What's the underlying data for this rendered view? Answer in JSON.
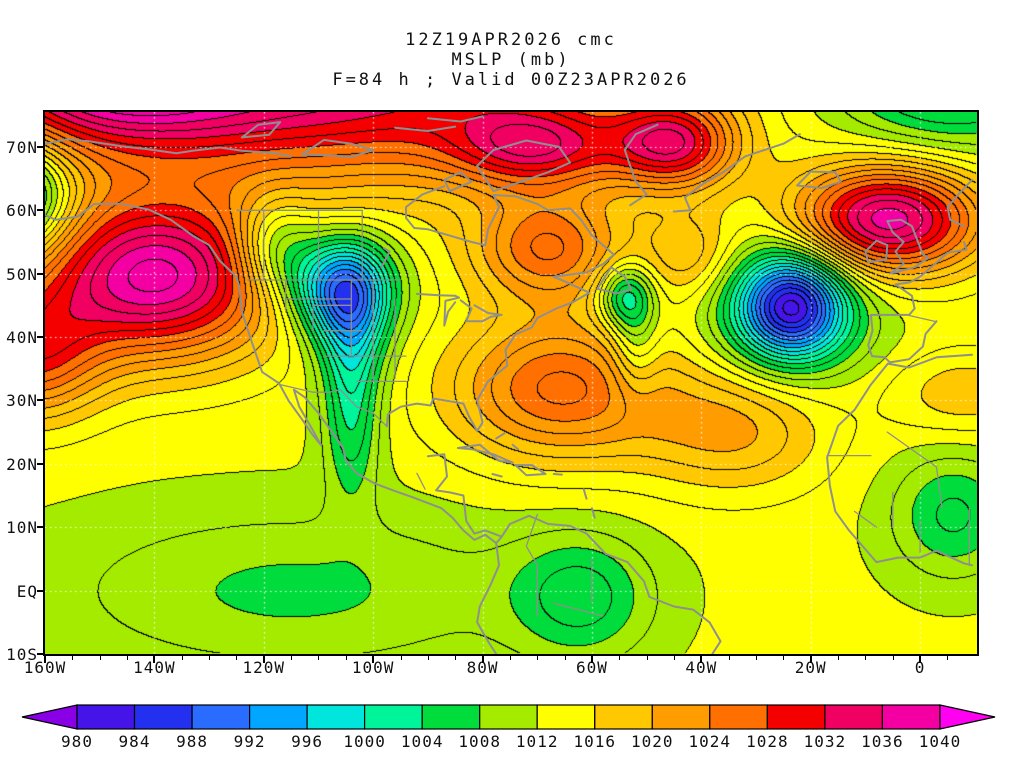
{
  "title": {
    "line1": "12Z19APR2026 cmc",
    "line2": "MSLP (mb)",
    "line3": "F=84 h ; Valid 00Z23APR2026"
  },
  "axes": {
    "lat_ticks": [
      {
        "label": "70N",
        "value": 70
      },
      {
        "label": "60N",
        "value": 60
      },
      {
        "label": "50N",
        "value": 50
      },
      {
        "label": "40N",
        "value": 40
      },
      {
        "label": "30N",
        "value": 30
      },
      {
        "label": "20N",
        "value": 20
      },
      {
        "label": "10N",
        "value": 10
      },
      {
        "label": "EQ",
        "value": 0
      },
      {
        "label": "10S",
        "value": -10
      }
    ],
    "lon_ticks": [
      {
        "label": "160W",
        "value": -160
      },
      {
        "label": "140W",
        "value": -140
      },
      {
        "label": "120W",
        "value": -120
      },
      {
        "label": "100W",
        "value": -100
      },
      {
        "label": "80W",
        "value": -80
      },
      {
        "label": "60W",
        "value": -60
      },
      {
        "label": "40W",
        "value": -40
      },
      {
        "label": "20W",
        "value": -20
      },
      {
        "label": "0",
        "value": 0
      }
    ]
  },
  "colorbar": {
    "labels": [
      "980",
      "984",
      "988",
      "992",
      "996",
      "1000",
      "1004",
      "1008",
      "1012",
      "1016",
      "1020",
      "1024",
      "1028",
      "1032",
      "1036",
      "1040"
    ],
    "colors": [
      "#8a00e6",
      "#4414e8",
      "#2330f0",
      "#2a6cff",
      "#00a6ff",
      "#00e6dc",
      "#00f59b",
      "#00dc3c",
      "#a4eb00",
      "#ffff00",
      "#ffc800",
      "#ff9c00",
      "#ff7000",
      "#f40000",
      "#f00060",
      "#f400a2",
      "#ff00f0"
    ],
    "outline_color": "#000000"
  },
  "chart_data": {
    "type": "heatmap",
    "title": "12Z19APR2026 cmc MSLP (mb) F=84 h ; Valid 00Z23APR2026",
    "model": "cmc",
    "init_time": "12Z19APR2026",
    "forecast_hour": 84,
    "valid_time": "00Z23APR2026",
    "field": "MSLP",
    "units": "mb",
    "lon_range_deg": [
      -160,
      10.4
    ],
    "lat_range_deg": [
      -10,
      75.5
    ],
    "fill_levels_mb": [
      980,
      984,
      988,
      992,
      996,
      1000,
      1004,
      1008,
      1012,
      1016,
      1020,
      1024,
      1028,
      1032,
      1036,
      1040
    ],
    "contour_interval_mb": 2,
    "fill_interval_mb": 4,
    "background_pressure_mb": 1012.5,
    "grid_lines": {
      "lat_deg": [
        70,
        60,
        50,
        40,
        30,
        20,
        10,
        0,
        -10
      ],
      "lon_deg": [
        -140,
        -120,
        -100,
        -80,
        -60,
        -40,
        -20,
        0
      ],
      "style": "dotted-white"
    },
    "pressure_centers": [
      {
        "name": "northeast-pacific-high",
        "type": "high",
        "lon": -140,
        "lat": 49.5,
        "amplitude_mb": 26,
        "rx_deg": 16,
        "ry_deg": 9
      },
      {
        "name": "west-pacific-ridge",
        "type": "high",
        "lon": -163,
        "lat": 37,
        "amplitude_mb": 14,
        "rx_deg": 9,
        "ry_deg": 7
      },
      {
        "name": "arctic-ridge",
        "type": "high",
        "lon": -110,
        "lat": 80,
        "amplitude_mb": 22,
        "rx_deg": 38,
        "ry_deg": 11
      },
      {
        "name": "arctic-high-west-core",
        "type": "high",
        "lon": -70,
        "lat": 70,
        "amplitude_mb": 14,
        "rx_deg": 11,
        "ry_deg": 4.5
      },
      {
        "name": "arctic-high-east-core",
        "type": "high",
        "lon": -45,
        "lat": 70.5,
        "amplitude_mb": 18,
        "rx_deg": 8,
        "ry_deg": 5
      },
      {
        "name": "alaska-arctic-ridge",
        "type": "high",
        "lon": -150,
        "lat": 80,
        "amplitude_mb": 16,
        "rx_deg": 18,
        "ry_deg": 7
      },
      {
        "name": "northeast-atlantic-high",
        "type": "high",
        "lon": -6,
        "lat": 58.5,
        "amplitude_mb": 25,
        "rx_deg": 12,
        "ry_deg": 6
      },
      {
        "name": "west-atlantic-high",
        "type": "high",
        "lon": -66,
        "lat": 32,
        "amplitude_mb": 14,
        "rx_deg": 14,
        "ry_deg": 8
      },
      {
        "name": "east-canada-ridge",
        "type": "high",
        "lon": -68,
        "lat": 54,
        "amplitude_mb": 13,
        "rx_deg": 10,
        "ry_deg": 6
      },
      {
        "name": "subtropical-atlantic-high",
        "type": "high",
        "lon": -34,
        "lat": 25.5,
        "amplitude_mb": 8,
        "rx_deg": 12,
        "ry_deg": 7
      },
      {
        "name": "sahara-ridge",
        "type": "high",
        "lon": 8,
        "lat": 31,
        "amplitude_mb": 5,
        "rx_deg": 10,
        "ry_deg": 5
      },
      {
        "name": "mid-atlantic-ridge",
        "type": "high",
        "lon": -42,
        "lat": 53,
        "amplitude_mb": 7,
        "rx_deg": 6,
        "ry_deg": 5
      },
      {
        "name": "northern-plains-low",
        "type": "low",
        "lon": -106,
        "lat": 48,
        "amplitude_mb": -22,
        "rx_deg": 6.5,
        "ry_deg": 5.5
      },
      {
        "name": "plains-trough",
        "type": "low",
        "lon": -104,
        "lat": 41,
        "amplitude_mb": -10,
        "rx_deg": 4.5,
        "ry_deg": 7
      },
      {
        "name": "bc-trough",
        "type": "low",
        "lon": -118,
        "lat": 54,
        "amplitude_mb": -10,
        "rx_deg": 5,
        "ry_deg": 5.5
      },
      {
        "name": "atlantic-low",
        "type": "low",
        "lon": -23.5,
        "lat": 44.8,
        "amplitude_mb": -24,
        "rx_deg": 6.5,
        "ry_deg": 5.5
      },
      {
        "name": "atlantic-low-halo",
        "type": "low",
        "lon": -24,
        "lat": 45,
        "amplitude_mb": -8,
        "rx_deg": 11,
        "ry_deg": 8
      },
      {
        "name": "newfoundland-low",
        "type": "low",
        "lon": -54,
        "lat": 46.5,
        "amplitude_mb": -11,
        "rx_deg": 3.5,
        "ry_deg": 3.5
      },
      {
        "name": "newfoundland-trough",
        "type": "low",
        "lon": -52,
        "lat": 39,
        "amplitude_mb": -6,
        "rx_deg": 3,
        "ry_deg": 6
      },
      {
        "name": "bering-low",
        "type": "low",
        "lon": -166,
        "lat": 62,
        "amplitude_mb": -18,
        "rx_deg": 7,
        "ry_deg": 6
      },
      {
        "name": "scandinavia-low",
        "type": "low",
        "lon": 5,
        "lat": 80,
        "amplitude_mb": -11,
        "rx_deg": 14,
        "ry_deg": 7
      },
      {
        "name": "mexico-heat-trough",
        "type": "low",
        "lon": -104,
        "lat": 27,
        "amplitude_mb": -8,
        "rx_deg": 3.5,
        "ry_deg": 9
      },
      {
        "name": "amazon-low",
        "type": "low",
        "lon": -62,
        "lat": -1,
        "amplitude_mb": -7,
        "rx_deg": 9,
        "ry_deg": 7
      },
      {
        "name": "africa-heat-low",
        "type": "low",
        "lon": 6,
        "lat": 12,
        "amplitude_mb": -7,
        "rx_deg": 8,
        "ry_deg": 7
      },
      {
        "name": "equatorial-pacific-trough",
        "type": "low",
        "lon": -115,
        "lat": 0,
        "amplitude_mb": -5,
        "rx_deg": 30,
        "ry_deg": 9
      }
    ]
  }
}
